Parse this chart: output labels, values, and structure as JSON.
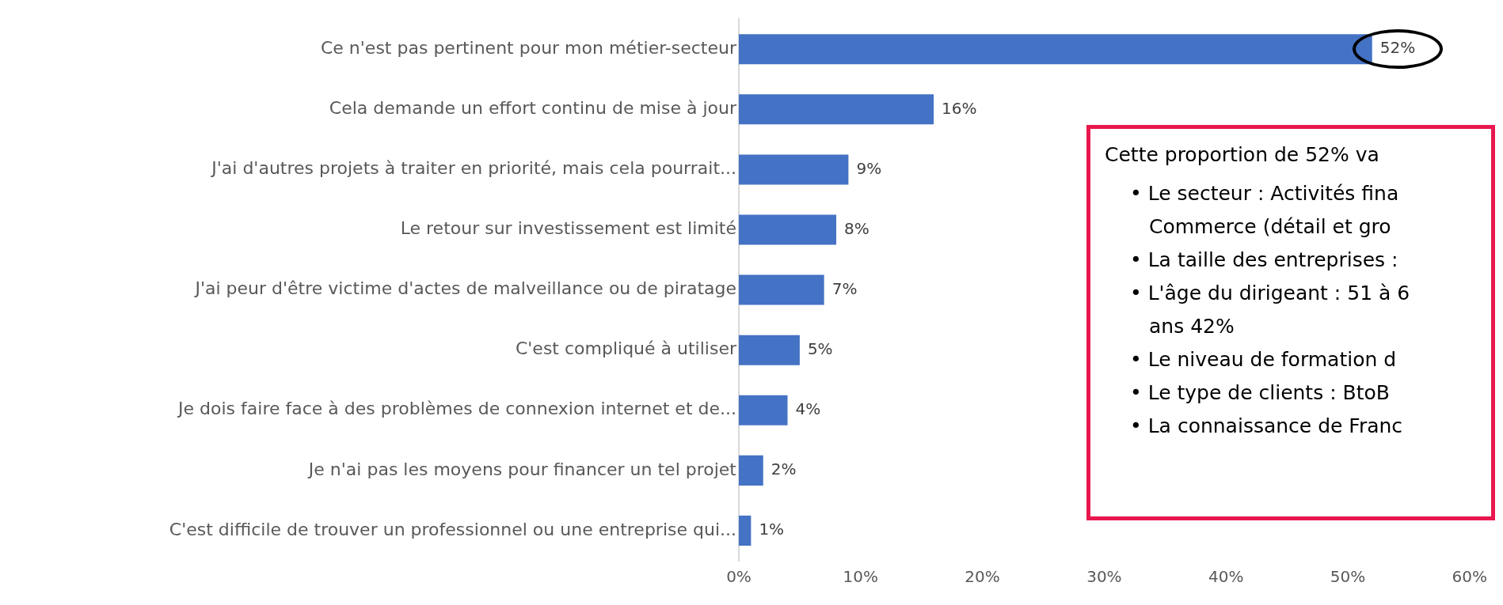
{
  "chart_data": {
    "type": "bar",
    "orientation": "horizontal",
    "categories": [
      "Ce n'est pas pertinent pour mon métier-secteur",
      "Cela demande un effort continu de mise à jour",
      "J'ai d'autres projets à traiter en priorité, mais cela pourrait...",
      "Le retour sur investissement est limité",
      "J'ai peur d'être victime d'actes de malveillance ou de piratage",
      "C'est compliqué à utiliser",
      "Je dois faire face à des problèmes de connexion internet et de...",
      "Je n'ai pas les moyens pour financer un tel projet",
      "C'est difficile de trouver un professionnel ou une entreprise qui..."
    ],
    "values": [
      52,
      16,
      9,
      8,
      7,
      5,
      4,
      2,
      1
    ],
    "value_labels": [
      "52%",
      "16%",
      "9%",
      "8%",
      "7%",
      "5%",
      "4%",
      "2%",
      "1%"
    ],
    "color": "#4472c4",
    "xlim": [
      0,
      60
    ],
    "xticks": [
      {
        "value": 0,
        "label": "0%"
      },
      {
        "value": 10,
        "label": "10%"
      },
      {
        "value": 20,
        "label": "20%"
      },
      {
        "value": 30,
        "label": "30%"
      },
      {
        "value": 40,
        "label": "40%"
      },
      {
        "value": 50,
        "label": "50%"
      },
      {
        "value": 60,
        "label": "60%"
      }
    ],
    "grid": false,
    "annotations": [
      "Cette proportion de 52% va",
      "• Le secteur : Activités fina\nCommerce (détail et gro",
      "• La taille des entreprises :",
      "• L'âge du dirigeant : 51 à 6\nans 42%",
      "• Le niveau de formation d",
      "• Le type de clients : BtoB",
      "• La connaissance de Franc"
    ]
  }
}
